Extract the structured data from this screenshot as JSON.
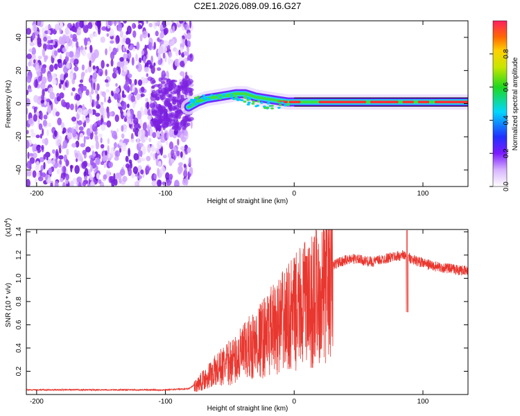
{
  "page_title": "C2E1.2026.089.09.16.G27",
  "colors": {
    "snr_line": "#e8372f",
    "signal_track": "#ff2a3a",
    "noise": "#7d22e0"
  },
  "chart_data": [
    {
      "id": "spectrogram",
      "type": "heatmap",
      "title": "C2E1.2026.089.09.16.G27",
      "xlabel": "Height of straight line (km)",
      "ylabel": "Frequency (Hz)",
      "xlim": [
        -208,
        135
      ],
      "ylim": [
        -50,
        50
      ],
      "x_ticks": [
        -200,
        -100,
        0,
        100
      ],
      "y_ticks": [
        -40,
        -20,
        0,
        20,
        40
      ],
      "noise_region_x": [
        -208,
        -82
      ],
      "signal_track": [
        {
          "x": -82,
          "y": -2
        },
        {
          "x": -75,
          "y": 1
        },
        {
          "x": -68,
          "y": 3
        },
        {
          "x": -60,
          "y": 4
        },
        {
          "x": -52,
          "y": 5
        },
        {
          "x": -45,
          "y": 6
        },
        {
          "x": -38,
          "y": 6
        },
        {
          "x": -30,
          "y": 4
        },
        {
          "x": -22,
          "y": 3
        },
        {
          "x": -14,
          "y": 2
        },
        {
          "x": -5,
          "y": 1
        },
        {
          "x": 0,
          "y": 1
        },
        {
          "x": 20,
          "y": 1
        },
        {
          "x": 60,
          "y": 1
        },
        {
          "x": 100,
          "y": 1
        },
        {
          "x": 135,
          "y": 1
        }
      ],
      "colorbar": {
        "label": "Normalized spectral amplitude",
        "range": [
          0,
          1
        ],
        "ticks": [
          0,
          0.2,
          0.4,
          0.6,
          0.8
        ],
        "tick_labels": [
          "0.0",
          "0.2",
          "0.4",
          "0.6",
          "0.8"
        ]
      }
    },
    {
      "id": "snr",
      "type": "line",
      "xlabel": "Height of straight line (km)",
      "ylabel": "SNR (10 * v/v)",
      "scale_note": "(x10",
      "scale_exp": "4",
      "scale_close": ")",
      "xlim": [
        -208,
        135
      ],
      "ylim": [
        0,
        1.42
      ],
      "x_ticks": [
        -200,
        -100,
        0,
        100
      ],
      "y_ticks": [
        0.2,
        0.4,
        0.6,
        0.8,
        1.0,
        1.2,
        1.4
      ],
      "y_tick_labels": [
        "0.2",
        "0.4",
        "0.6",
        "0.8",
        "1.0",
        "1.2",
        "1.4"
      ],
      "series": [
        {
          "name": "SNR",
          "envelope_x": [
            -208,
            -100,
            -82,
            -75,
            -65,
            -55,
            -45,
            -35,
            -25,
            -15,
            -5,
            5,
            15,
            25,
            35,
            45,
            60,
            75,
            85,
            95,
            110,
            135
          ],
          "envelope_y": [
            0.04,
            0.04,
            0.05,
            0.1,
            0.2,
            0.28,
            0.35,
            0.45,
            0.55,
            0.65,
            0.75,
            0.85,
            0.98,
            1.08,
            1.14,
            1.17,
            1.14,
            1.18,
            1.2,
            1.15,
            1.1,
            1.06
          ]
        }
      ]
    }
  ]
}
